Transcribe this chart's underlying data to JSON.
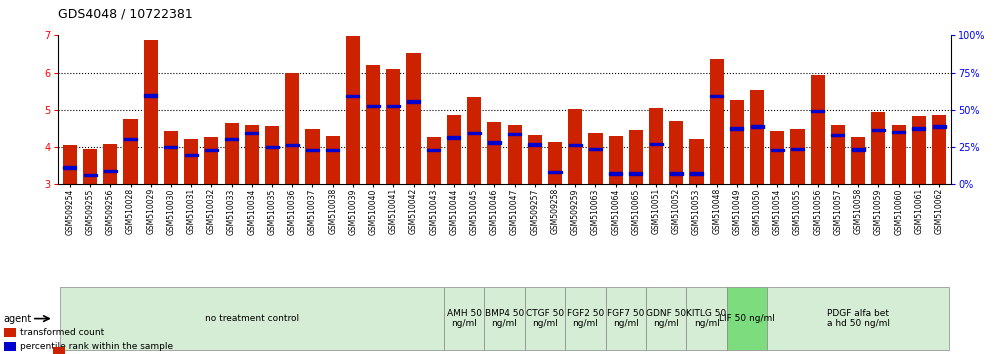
{
  "title": "GDS4048 / 10722381",
  "samples": [
    "GSM509254",
    "GSM509255",
    "GSM509256",
    "GSM510028",
    "GSM510029",
    "GSM510030",
    "GSM510031",
    "GSM510032",
    "GSM510033",
    "GSM510034",
    "GSM510035",
    "GSM510036",
    "GSM510037",
    "GSM510038",
    "GSM510039",
    "GSM510040",
    "GSM510041",
    "GSM510042",
    "GSM510043",
    "GSM510044",
    "GSM510045",
    "GSM510046",
    "GSM510047",
    "GSM509257",
    "GSM509258",
    "GSM509259",
    "GSM510063",
    "GSM510064",
    "GSM510065",
    "GSM510051",
    "GSM510052",
    "GSM510053",
    "GSM510048",
    "GSM510049",
    "GSM510050",
    "GSM510054",
    "GSM510055",
    "GSM510056",
    "GSM510057",
    "GSM510058",
    "GSM510059",
    "GSM510060",
    "GSM510061",
    "GSM510062"
  ],
  "red_values": [
    4.05,
    3.95,
    4.07,
    4.75,
    6.87,
    4.42,
    4.22,
    4.28,
    4.65,
    4.6,
    4.55,
    5.98,
    4.48,
    4.3,
    6.98,
    6.2,
    6.1,
    6.52,
    4.28,
    4.87,
    5.35,
    4.68,
    4.6,
    4.33,
    4.12,
    5.02,
    4.38,
    4.3,
    4.45,
    5.05,
    4.7,
    4.2,
    6.37,
    5.27,
    5.52,
    4.43,
    4.48,
    5.93,
    4.6,
    4.27,
    4.95,
    4.6,
    4.83,
    4.87
  ],
  "blue_positions": [
    3.45,
    3.25,
    3.35,
    4.22,
    5.38,
    4.0,
    3.78,
    3.92,
    4.22,
    4.38,
    4.0,
    4.05,
    3.92,
    3.92,
    5.37,
    5.1,
    5.1,
    5.22,
    3.92,
    4.25,
    4.38,
    4.12,
    4.35,
    4.07,
    3.33,
    4.05,
    3.95,
    3.28,
    3.28,
    4.08,
    3.28,
    3.28,
    5.37,
    4.5,
    4.55,
    3.92,
    3.95,
    4.97,
    4.32,
    3.93,
    4.45,
    4.4,
    4.5,
    4.55
  ],
  "group_starts": [
    0,
    19,
    21,
    23,
    25,
    27,
    29,
    31,
    33,
    35
  ],
  "group_ends": [
    19,
    21,
    23,
    25,
    27,
    29,
    31,
    33,
    35,
    44
  ],
  "group_labels": [
    "no treatment control",
    "AMH 50\nng/ml",
    "BMP4 50\nng/ml",
    "CTGF 50\nng/ml",
    "FGF2 50\nng/ml",
    "FGF7 50\nng/ml",
    "GDNF 50\nng/ml",
    "KITLG 50\nng/ml",
    "LIF 50 ng/ml",
    "PDGF alfa bet\na hd 50 ng/ml"
  ],
  "group_colors": [
    "#d4edd4",
    "#d4edd4",
    "#d4edd4",
    "#d4edd4",
    "#d4edd4",
    "#d4edd4",
    "#d4edd4",
    "#d4edd4",
    "#7ddc7d",
    "#d4edd4"
  ],
  "ylim_left": [
    3,
    7
  ],
  "ylim_right": [
    0,
    100
  ],
  "yticks_left": [
    3,
    4,
    5,
    6,
    7
  ],
  "yticks_right": [
    0,
    25,
    50,
    75,
    100
  ],
  "bar_color": "#cc2200",
  "dot_color": "#0000cc",
  "bar_width": 0.7,
  "baseline": 3.0,
  "title_fontsize": 9,
  "tick_fontsize": 5.5,
  "group_fontsize": 6.5
}
